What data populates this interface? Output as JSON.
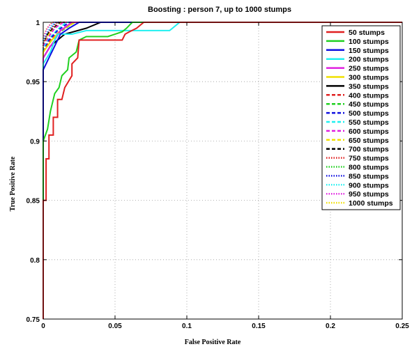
{
  "chart_data": {
    "type": "line",
    "title": "Boosting : person 7, up to 1000 stumps",
    "xlabel": "False Positive Rate",
    "ylabel": "True Positive Rate",
    "xlim": [
      0,
      0.25
    ],
    "ylim": [
      0.75,
      1
    ],
    "xticks": [
      "0",
      "0.05",
      "0.1",
      "0.15",
      "0.2",
      "0.25"
    ],
    "yticks": [
      "0.75",
      "0.8",
      "0.85",
      "0.9",
      "0.95",
      "1"
    ],
    "grid": true,
    "legend_position": "top-right",
    "series": [
      {
        "name": "50 stumps",
        "color": "#e02020",
        "style": "solid",
        "points": [
          [
            0,
            0.75
          ],
          [
            0,
            0.85
          ],
          [
            0.002,
            0.85
          ],
          [
            0.002,
            0.885
          ],
          [
            0.004,
            0.885
          ],
          [
            0.004,
            0.905
          ],
          [
            0.007,
            0.905
          ],
          [
            0.007,
            0.92
          ],
          [
            0.01,
            0.92
          ],
          [
            0.01,
            0.935
          ],
          [
            0.013,
            0.935
          ],
          [
            0.015,
            0.945
          ],
          [
            0.02,
            0.955
          ],
          [
            0.02,
            0.965
          ],
          [
            0.024,
            0.97
          ],
          [
            0.025,
            0.985
          ],
          [
            0.055,
            0.985
          ],
          [
            0.057,
            0.99
          ],
          [
            0.06,
            0.992
          ],
          [
            0.065,
            0.995
          ],
          [
            0.07,
            1
          ],
          [
            0.25,
            1
          ]
        ]
      },
      {
        "name": "100 stumps",
        "color": "#20d020",
        "style": "solid",
        "points": [
          [
            0,
            0.75
          ],
          [
            0,
            0.9
          ],
          [
            0.003,
            0.91
          ],
          [
            0.005,
            0.925
          ],
          [
            0.008,
            0.94
          ],
          [
            0.011,
            0.945
          ],
          [
            0.013,
            0.955
          ],
          [
            0.017,
            0.96
          ],
          [
            0.018,
            0.97
          ],
          [
            0.023,
            0.975
          ],
          [
            0.025,
            0.985
          ],
          [
            0.03,
            0.988
          ],
          [
            0.045,
            0.988
          ],
          [
            0.05,
            0.99
          ],
          [
            0.055,
            0.992
          ],
          [
            0.058,
            0.995
          ],
          [
            0.062,
            1
          ],
          [
            0.25,
            1
          ]
        ]
      },
      {
        "name": "150 stumps",
        "color": "#1010e0",
        "style": "solid",
        "points": [
          [
            0,
            0.75
          ],
          [
            0,
            0.96
          ],
          [
            0.004,
            0.97
          ],
          [
            0.008,
            0.98
          ],
          [
            0.012,
            0.99
          ],
          [
            0.018,
            0.995
          ],
          [
            0.025,
            1
          ],
          [
            0.25,
            1
          ]
        ]
      },
      {
        "name": "200 stumps",
        "color": "#20f0f0",
        "style": "solid",
        "points": [
          [
            0,
            0.75
          ],
          [
            0,
            0.965
          ],
          [
            0.005,
            0.975
          ],
          [
            0.008,
            0.985
          ],
          [
            0.01,
            0.99
          ],
          [
            0.02,
            0.99
          ],
          [
            0.03,
            0.993
          ],
          [
            0.088,
            0.993
          ],
          [
            0.092,
            0.997
          ],
          [
            0.095,
            1
          ],
          [
            0.25,
            1
          ]
        ]
      },
      {
        "name": "250 stumps",
        "color": "#e020e0",
        "style": "solid",
        "points": [
          [
            0,
            0.75
          ],
          [
            0,
            0.97
          ],
          [
            0.004,
            0.978
          ],
          [
            0.008,
            0.985
          ],
          [
            0.012,
            0.993
          ],
          [
            0.02,
            1
          ],
          [
            0.25,
            1
          ]
        ]
      },
      {
        "name": "300 stumps",
        "color": "#f0e000",
        "style": "solid",
        "points": [
          [
            0,
            0.75
          ],
          [
            0,
            0.975
          ],
          [
            0.006,
            0.985
          ],
          [
            0.012,
            0.993
          ],
          [
            0.022,
            1
          ],
          [
            0.25,
            1
          ]
        ]
      },
      {
        "name": "350 stumps",
        "color": "#000000",
        "style": "solid",
        "points": [
          [
            0,
            0.75
          ],
          [
            0,
            0.97
          ],
          [
            0.005,
            0.98
          ],
          [
            0.015,
            0.99
          ],
          [
            0.03,
            0.995
          ],
          [
            0.04,
            1
          ],
          [
            0.25,
            1
          ]
        ]
      },
      {
        "name": "400 stumps",
        "color": "#e02020",
        "style": "dashed",
        "points": [
          [
            0,
            0.75
          ],
          [
            0,
            0.975
          ],
          [
            0.005,
            0.985
          ],
          [
            0.012,
            0.993
          ],
          [
            0.02,
            1
          ],
          [
            0.25,
            1
          ]
        ]
      },
      {
        "name": "450 stumps",
        "color": "#20d020",
        "style": "dashed",
        "points": [
          [
            0,
            0.75
          ],
          [
            0,
            0.975
          ],
          [
            0.006,
            0.985
          ],
          [
            0.013,
            0.993
          ],
          [
            0.022,
            1
          ],
          [
            0.25,
            1
          ]
        ]
      },
      {
        "name": "500 stumps",
        "color": "#1010e0",
        "style": "dashed",
        "points": [
          [
            0,
            0.75
          ],
          [
            0,
            0.975
          ],
          [
            0.004,
            0.985
          ],
          [
            0.01,
            0.993
          ],
          [
            0.018,
            1
          ],
          [
            0.25,
            1
          ]
        ]
      },
      {
        "name": "550 stumps",
        "color": "#20f0f0",
        "style": "dashed",
        "points": [
          [
            0,
            0.75
          ],
          [
            0,
            0.978
          ],
          [
            0.004,
            0.986
          ],
          [
            0.01,
            0.994
          ],
          [
            0.016,
            1
          ],
          [
            0.25,
            1
          ]
        ]
      },
      {
        "name": "600 stumps",
        "color": "#e020e0",
        "style": "dashed",
        "points": [
          [
            0,
            0.75
          ],
          [
            0,
            0.98
          ],
          [
            0.004,
            0.988
          ],
          [
            0.008,
            0.995
          ],
          [
            0.014,
            1
          ],
          [
            0.25,
            1
          ]
        ]
      },
      {
        "name": "650 stumps",
        "color": "#f0e000",
        "style": "dashed",
        "points": [
          [
            0,
            0.75
          ],
          [
            0,
            0.98
          ],
          [
            0.004,
            0.99
          ],
          [
            0.008,
            0.995
          ],
          [
            0.013,
            1
          ],
          [
            0.25,
            1
          ]
        ]
      },
      {
        "name": "700 stumps",
        "color": "#000000",
        "style": "dashed",
        "points": [
          [
            0,
            0.75
          ],
          [
            0,
            0.98
          ],
          [
            0.003,
            0.99
          ],
          [
            0.007,
            0.995
          ],
          [
            0.012,
            1
          ],
          [
            0.25,
            1
          ]
        ]
      },
      {
        "name": "750 stumps",
        "color": "#e02020",
        "style": "dotted",
        "points": [
          [
            0,
            0.75
          ],
          [
            0,
            0.982
          ],
          [
            0.003,
            0.99
          ],
          [
            0.006,
            0.995
          ],
          [
            0.01,
            1
          ],
          [
            0.25,
            1
          ]
        ]
      },
      {
        "name": "800 stumps",
        "color": "#20d020",
        "style": "dotted",
        "points": [
          [
            0,
            0.75
          ],
          [
            0,
            0.982
          ],
          [
            0.003,
            0.99
          ],
          [
            0.006,
            0.995
          ],
          [
            0.01,
            1
          ],
          [
            0.25,
            1
          ]
        ]
      },
      {
        "name": "850 stumps",
        "color": "#1010e0",
        "style": "dotted",
        "points": [
          [
            0,
            0.75
          ],
          [
            0,
            0.984
          ],
          [
            0.003,
            0.991
          ],
          [
            0.006,
            0.996
          ],
          [
            0.009,
            1
          ],
          [
            0.25,
            1
          ]
        ]
      },
      {
        "name": "900 stumps",
        "color": "#20f0f0",
        "style": "dotted",
        "points": [
          [
            0,
            0.75
          ],
          [
            0,
            0.985
          ],
          [
            0.003,
            0.992
          ],
          [
            0.005,
            0.996
          ],
          [
            0.008,
            1
          ],
          [
            0.25,
            1
          ]
        ]
      },
      {
        "name": "950 stumps",
        "color": "#e020e0",
        "style": "dotted",
        "points": [
          [
            0,
            0.75
          ],
          [
            0,
            0.986
          ],
          [
            0.002,
            0.993
          ],
          [
            0.004,
            0.997
          ],
          [
            0.007,
            1
          ],
          [
            0.25,
            1
          ]
        ]
      },
      {
        "name": "1000 stumps",
        "color": "#f0e000",
        "style": "dotted",
        "points": [
          [
            0,
            0.75
          ],
          [
            0,
            0.987
          ],
          [
            0.002,
            0.994
          ],
          [
            0.004,
            0.997
          ],
          [
            0.006,
            1
          ],
          [
            0.25,
            1
          ]
        ]
      }
    ]
  }
}
